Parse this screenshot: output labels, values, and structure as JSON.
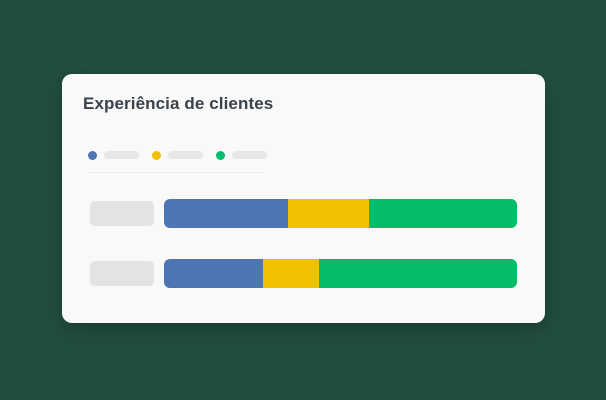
{
  "page": {
    "background": "#224e40"
  },
  "card": {
    "background": "#f8f9f8",
    "title": "Experiência de clientes",
    "title_color": "#3b4249"
  },
  "legend": {
    "labels_are_placeholders": true,
    "entries": [
      {
        "name": "blue",
        "color": "#4d74b3"
      },
      {
        "name": "yellow",
        "color": "#f2c100"
      },
      {
        "name": "green",
        "color": "#03bd69"
      }
    ]
  },
  "chart_data": {
    "type": "bar",
    "orientation": "horizontal",
    "stacked": true,
    "title": "Experiência de clientes",
    "categories": [
      "row-1",
      "row-2"
    ],
    "category_labels_are_placeholders": true,
    "unit": "percent",
    "x_max": 100,
    "legend_position": "top",
    "grid": false,
    "series": [
      {
        "name": "blue",
        "color": "#4d74b3",
        "values": [
          35,
          28
        ]
      },
      {
        "name": "yellow",
        "color": "#f2c100",
        "values": [
          23,
          16
        ]
      },
      {
        "name": "green",
        "color": "#03bd69",
        "values": [
          42,
          56
        ]
      }
    ]
  }
}
